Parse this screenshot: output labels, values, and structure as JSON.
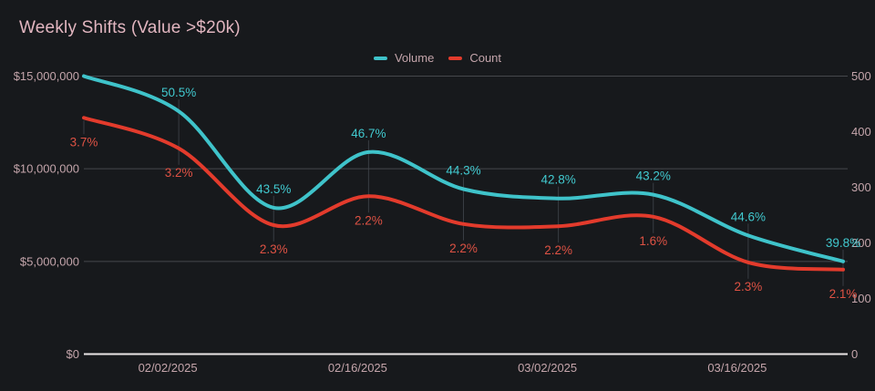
{
  "header": {
    "title": "Weekly Shifts (Value >$20k)"
  },
  "chart_data": {
    "type": "line",
    "title": "Weekly Shifts (Value >$20k)",
    "legend": [
      "Volume",
      "Count"
    ],
    "legend_position": "top-center",
    "grid": "horizontal-only",
    "num_points": 9,
    "x_ticks": [
      {
        "at_point": 2,
        "label": "02/02/2025"
      },
      {
        "at_point": 4,
        "label": "02/16/2025"
      },
      {
        "at_point": 6,
        "label": "03/02/2025"
      },
      {
        "at_point": 8,
        "label": "03/16/2025"
      }
    ],
    "left_axis": {
      "min": 0,
      "max": 15000000,
      "ticks": [
        "$0",
        "$5,000,000",
        "$10,000,000",
        "$15,000,000"
      ]
    },
    "right_axis": {
      "min": 0,
      "max": 500,
      "ticks": [
        "0",
        "100",
        "200",
        "300",
        "400",
        "500"
      ]
    },
    "series": [
      {
        "name": "Volume",
        "axis": "left",
        "color": "#3fc3ca",
        "label_color": "#41c9cf",
        "values": [
          15000000,
          13100000,
          7900000,
          10900000,
          8900000,
          8400000,
          8600000,
          6400000,
          5000000
        ],
        "point_labels": [
          "",
          "50.5%",
          "43.5%",
          "46.7%",
          "44.3%",
          "42.8%",
          "43.2%",
          "44.6%",
          "39.8%"
        ]
      },
      {
        "name": "Count",
        "axis": "right",
        "color": "#e33b2c",
        "label_color": "#de5244",
        "values": [
          425,
          370,
          232,
          284,
          234,
          230,
          247,
          165,
          152
        ],
        "point_labels": [
          "3.7%",
          "3.2%",
          "2.3%",
          "2.2%",
          "2.2%",
          "2.2%",
          "1.6%",
          "2.3%",
          "2.1%"
        ]
      }
    ],
    "colors": {
      "background": "#17191c",
      "title": "#e2b6c0",
      "axis_text": "#c4a5ab",
      "gridline": "#45474c",
      "x_axis_line": "#eae5e6",
      "label_connector": "#393d43"
    }
  }
}
